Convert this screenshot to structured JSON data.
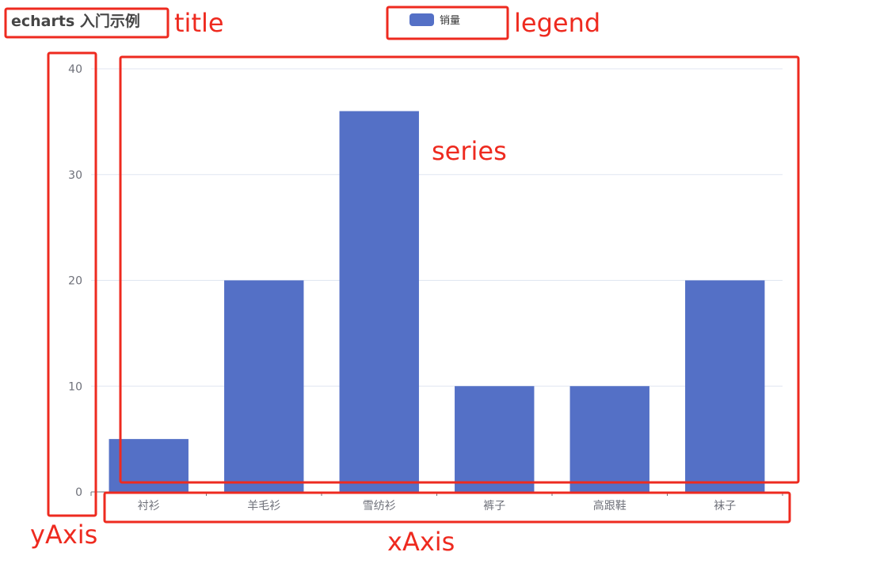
{
  "colors": {
    "bar": "#5470c6",
    "annotation": "#ee2a1f",
    "grid": "#e0e6f1",
    "axis_line": "#6e7079",
    "axis_text": "#6e7079",
    "title": "#464646"
  },
  "annotations": {
    "title": "title",
    "legend": "legend",
    "series": "series",
    "yaxis": "yAxis",
    "xaxis": "xAxis"
  },
  "chart_data": {
    "type": "bar",
    "title": "echarts 入门示例",
    "legend": [
      "销量"
    ],
    "categories": [
      "衬衫",
      "羊毛衫",
      "雪纺衫",
      "裤子",
      "高跟鞋",
      "袜子"
    ],
    "series": [
      {
        "name": "销量",
        "values": [
          5,
          20,
          36,
          10,
          10,
          20
        ]
      }
    ],
    "ylim": [
      0,
      40
    ],
    "yticks": [
      0,
      10,
      20,
      30,
      40
    ],
    "grid": true,
    "legend_position": "top-center"
  }
}
